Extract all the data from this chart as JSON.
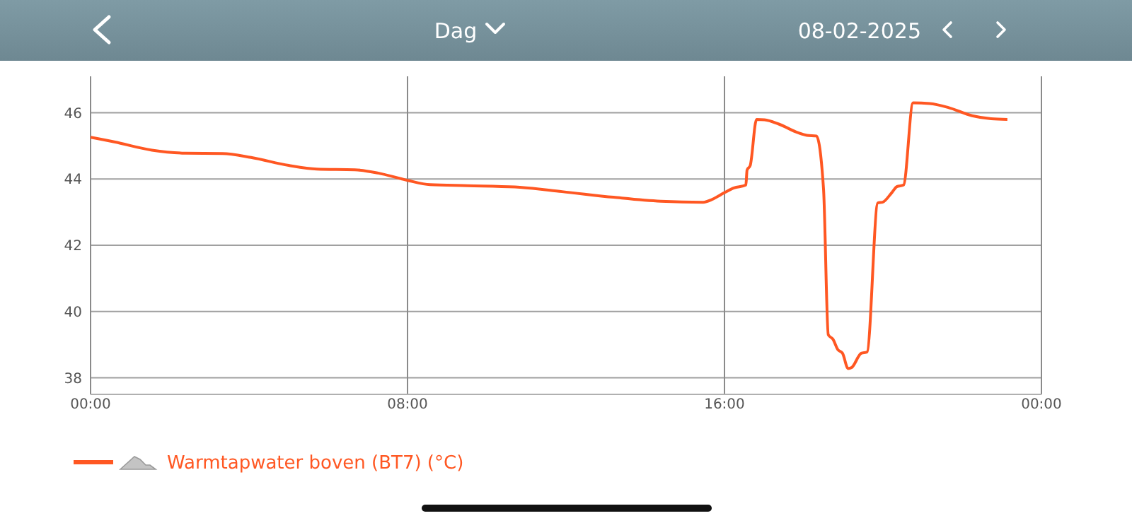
{
  "chart_data": {
    "type": "line",
    "annotations": [
      "Dag",
      "08-02-2025"
    ],
    "xlim": [
      0,
      24
    ],
    "xticks": [
      {
        "value": 0,
        "label": "00:00"
      },
      {
        "value": 8,
        "label": "08:00"
      },
      {
        "value": 16,
        "label": "16:00"
      },
      {
        "value": 24,
        "label": "00:00"
      }
    ],
    "ylim": [
      37.5,
      47.1
    ],
    "yticks": [
      38,
      40,
      42,
      44,
      46
    ],
    "grid": true,
    "legend": "bottom left",
    "marker": "none",
    "line_style": "solid",
    "series": [
      {
        "name": "Warmtapwater boven (BT7) (°C)",
        "color": "#ff5722",
        "x": [
          0,
          0.6,
          1.55,
          2.38,
          3.33,
          4.05,
          5.0,
          5.71,
          6.67,
          7.26,
          8.0,
          8.57,
          9.52,
          10.71,
          11.9,
          13.2,
          14.39,
          15.46,
          15.7,
          16.0,
          16.24,
          16.54,
          16.57,
          16.65,
          16.81,
          17.01,
          17.37,
          17.85,
          18.08,
          18.32,
          18.5,
          18.62,
          18.74,
          18.86,
          18.98,
          19.12,
          19.21,
          19.45,
          19.6,
          19.87,
          19.99,
          20.23,
          20.35,
          20.52,
          20.76,
          21.18,
          21.65,
          22.25,
          22.73,
          23.14
        ],
        "values": [
          45.26,
          45.12,
          44.87,
          44.78,
          44.77,
          44.65,
          44.41,
          44.3,
          44.28,
          44.18,
          43.96,
          43.83,
          43.8,
          43.76,
          43.62,
          43.45,
          43.33,
          43.3,
          43.39,
          43.59,
          43.73,
          43.82,
          44.27,
          44.41,
          45.8,
          45.79,
          45.66,
          45.4,
          45.32,
          45.3,
          43.7,
          39.3,
          39.16,
          38.85,
          38.74,
          38.28,
          38.31,
          38.74,
          38.78,
          43.28,
          43.3,
          43.6,
          43.77,
          43.82,
          46.3,
          46.28,
          46.16,
          45.91,
          45.82,
          45.8
        ]
      }
    ]
  }
}
